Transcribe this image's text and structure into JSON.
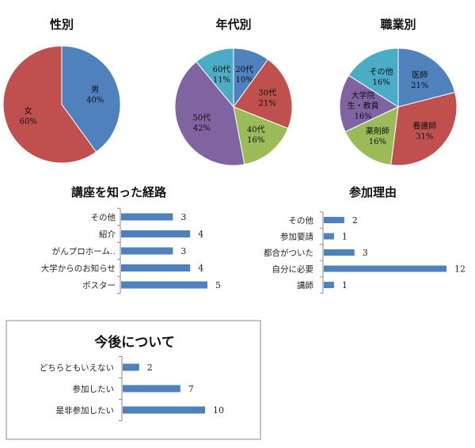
{
  "chart_data": [
    {
      "type": "pie",
      "title": "性別",
      "slices": [
        {
          "label": "男",
          "value": 40,
          "color": "#4f81bd"
        },
        {
          "label": "女",
          "value": 60,
          "color": "#c0504d"
        }
      ]
    },
    {
      "type": "pie",
      "title": "年代別",
      "slices": [
        {
          "label": "20代",
          "value": 10,
          "color": "#4f81bd"
        },
        {
          "label": "30代",
          "value": 21,
          "color": "#c0504d"
        },
        {
          "label": "40代",
          "value": 16,
          "color": "#9bbb59"
        },
        {
          "label": "50代",
          "value": 42,
          "color": "#8064a2"
        },
        {
          "label": "60代",
          "value": 11,
          "color": "#4bacc6"
        }
      ]
    },
    {
      "type": "pie",
      "title": "職業別",
      "slices": [
        {
          "label": "医師",
          "value": 21,
          "color": "#4f81bd"
        },
        {
          "label": "看護師",
          "value": 31,
          "color": "#c0504d"
        },
        {
          "label": "薬剤師",
          "value": 16,
          "color": "#9bbb59"
        },
        {
          "label": "大学院生・教員",
          "value": 16,
          "color": "#8064a2",
          "lines": [
            "大学院",
            "生・教員"
          ]
        },
        {
          "label": "その他",
          "value": 16,
          "color": "#4bacc6"
        }
      ]
    },
    {
      "type": "bar",
      "orientation": "horizontal",
      "title": "講座を知った経路",
      "categories": [
        "その他",
        "紹介",
        "がんプロホーム‥",
        "大学からのお知らせ",
        "ポスター"
      ],
      "values": [
        3,
        4,
        3,
        4,
        5
      ],
      "xlim": [
        0,
        5
      ],
      "color": "#4f81bd"
    },
    {
      "type": "bar",
      "orientation": "horizontal",
      "title": "参加理由",
      "categories": [
        "その他",
        "参加要請",
        "都合がついた",
        "自分に必要",
        "講師"
      ],
      "values": [
        2,
        1,
        3,
        12,
        1
      ],
      "xlim": [
        0,
        12
      ],
      "color": "#4f81bd"
    },
    {
      "type": "bar",
      "orientation": "horizontal",
      "title": "今後について",
      "categories": [
        "どちらともいえない",
        "参加したい",
        "是非参加したい"
      ],
      "values": [
        2,
        7,
        10
      ],
      "xlim": [
        0,
        10
      ],
      "color": "#4f81bd",
      "framed": true
    }
  ]
}
